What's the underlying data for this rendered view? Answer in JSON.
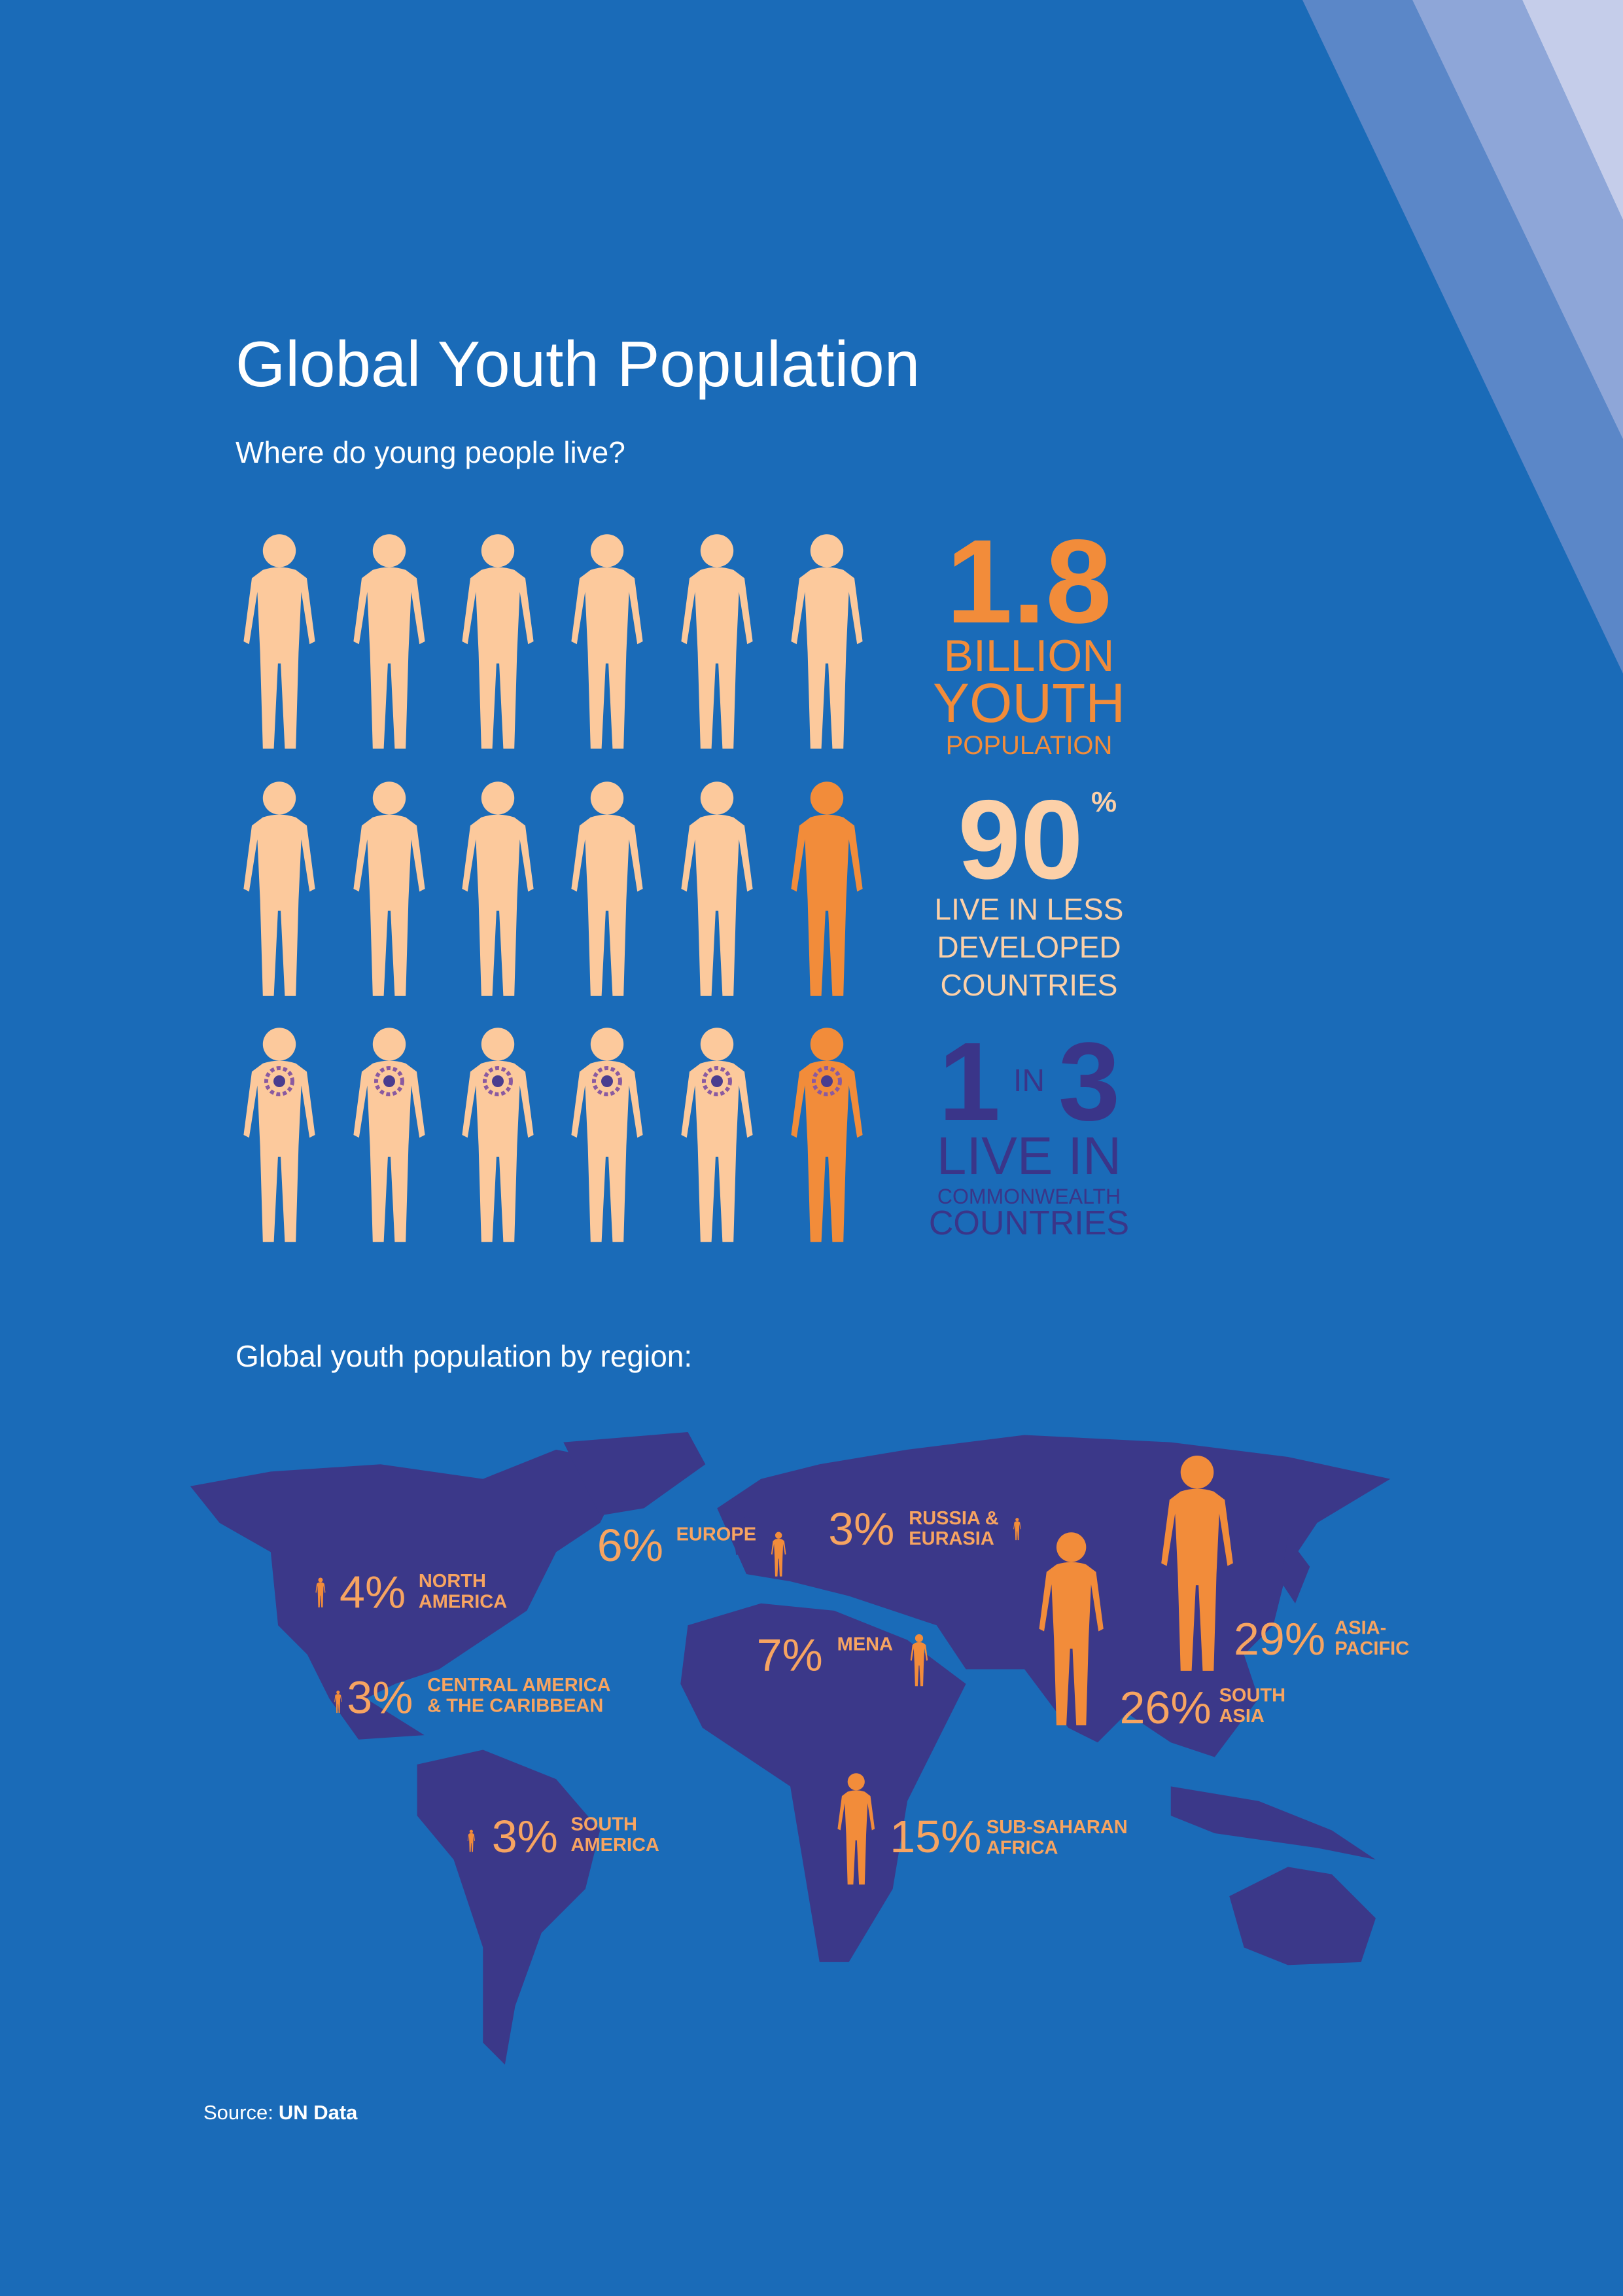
{
  "header": {
    "title": "Global Youth Population",
    "subtitle": "Where do young people live?"
  },
  "stats": [
    {
      "number": "1.8",
      "lines": [
        "BILLION",
        "YOUTH",
        "POPULATION"
      ]
    },
    {
      "number": "90",
      "unit": "%",
      "lines": [
        "LIVE IN LESS",
        "DEVELOPED",
        "COUNTRIES"
      ]
    },
    {
      "number": "1",
      "connector": "IN",
      "number2": "3",
      "lines": [
        "LIVE IN",
        "COMMONWEALTH",
        "COUNTRIES"
      ]
    }
  ],
  "map": {
    "title": "Global youth population by region:",
    "regions": [
      {
        "value": 4,
        "label": "4%",
        "name": [
          "NORTH",
          "AMERICA"
        ]
      },
      {
        "value": 3,
        "label": "3%",
        "name": [
          "CENTRAL AMERICA",
          "& THE CARIBBEAN"
        ]
      },
      {
        "value": 3,
        "label": "3%",
        "name": [
          "SOUTH",
          "AMERICA"
        ]
      },
      {
        "value": 6,
        "label": "6%",
        "name": [
          "EUROPE"
        ]
      },
      {
        "value": 3,
        "label": "3%",
        "name": [
          "RUSSIA &",
          "EURASIA"
        ]
      },
      {
        "value": 7,
        "label": "7%",
        "name": [
          "MENA"
        ]
      },
      {
        "value": 15,
        "label": "15%",
        "name": [
          "SUB-SAHARAN",
          "AFRICA"
        ]
      },
      {
        "value": 26,
        "label": "26%",
        "name": [
          "SOUTH",
          "ASIA"
        ]
      },
      {
        "value": 29,
        "label": "29%",
        "name": [
          "ASIA-",
          "PACIFIC"
        ]
      }
    ]
  },
  "source": {
    "prefix": "Source:",
    "name": "UN Data"
  }
}
